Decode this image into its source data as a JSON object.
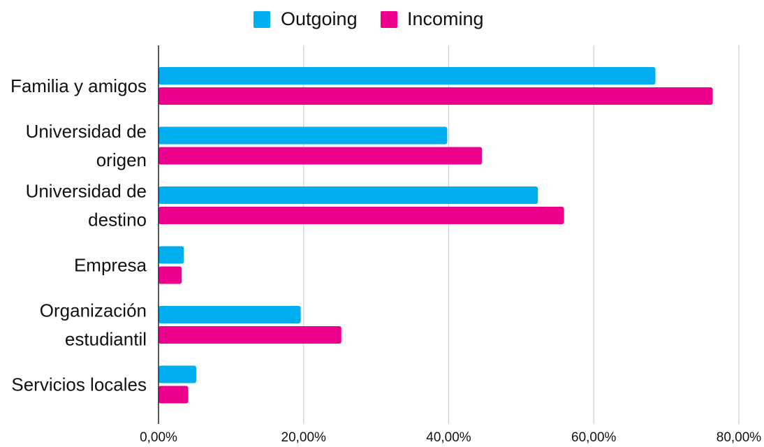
{
  "chart_data": {
    "type": "bar",
    "orientation": "horizontal",
    "title": "",
    "xlabel": "",
    "ylabel": "",
    "categories": [
      [
        "Familia y amigos"
      ],
      [
        "Universidad de",
        "origen"
      ],
      [
        "Universidad de",
        "destino"
      ],
      [
        "Empresa"
      ],
      [
        "Organización",
        "estudiantil"
      ],
      [
        "Servicios locales"
      ]
    ],
    "series": [
      {
        "name": "Outgoing",
        "color": "#00AEEF",
        "values": [
          68.5,
          39.8,
          52.3,
          3.5,
          19.6,
          5.2
        ]
      },
      {
        "name": "Incoming",
        "color": "#EC008C",
        "values": [
          76.4,
          44.6,
          55.9,
          3.2,
          25.2,
          4.1
        ]
      }
    ],
    "xlim": [
      0,
      80
    ],
    "x_ticks": [
      0,
      20,
      40,
      60,
      80
    ],
    "x_tick_labels": [
      "0,00%",
      "20,00%",
      "40,00%",
      "60,00%",
      "80,00%"
    ],
    "grid": "vertical",
    "legend": "top-center"
  }
}
